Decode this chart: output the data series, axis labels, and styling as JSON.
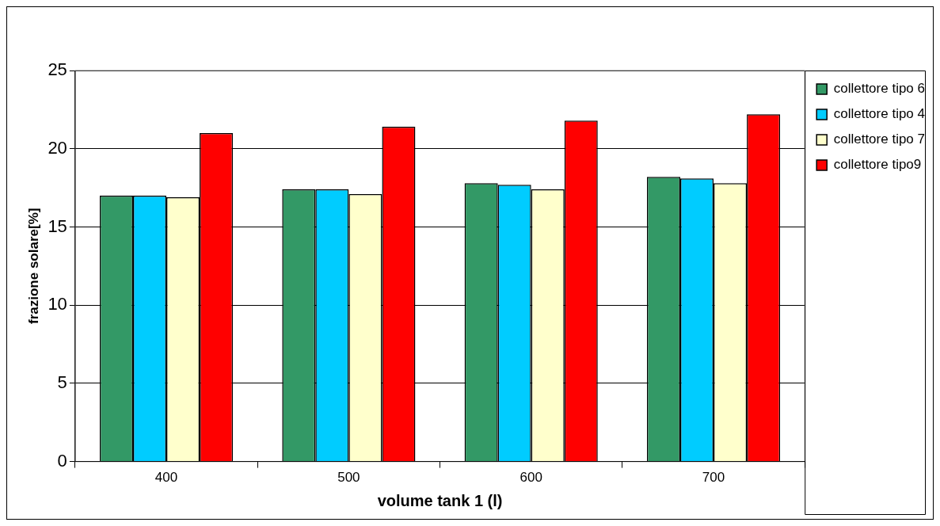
{
  "chart_data": {
    "type": "bar",
    "xlabel": "volume tank 1 (l)",
    "ylabel": "frazione solare[%]",
    "categories": [
      "400",
      "500",
      "600",
      "700"
    ],
    "series": [
      {
        "name": "collettore tipo 6",
        "color": "#339966",
        "values": [
          17.0,
          17.4,
          17.8,
          18.2
        ]
      },
      {
        "name": "collettore tipo 4",
        "color": "#00ccff",
        "values": [
          17.0,
          17.4,
          17.7,
          18.1
        ]
      },
      {
        "name": "collettore tipo 7",
        "color": "#ffffcc",
        "values": [
          16.9,
          17.1,
          17.4,
          17.8
        ]
      },
      {
        "name": "collettore tipo9",
        "color": "#ff0000",
        "values": [
          21.0,
          21.4,
          21.8,
          22.2
        ]
      }
    ],
    "ylim": [
      0,
      25
    ],
    "yticks": [
      0,
      5,
      10,
      15,
      20,
      25
    ],
    "grid": "y",
    "legend": "right"
  }
}
